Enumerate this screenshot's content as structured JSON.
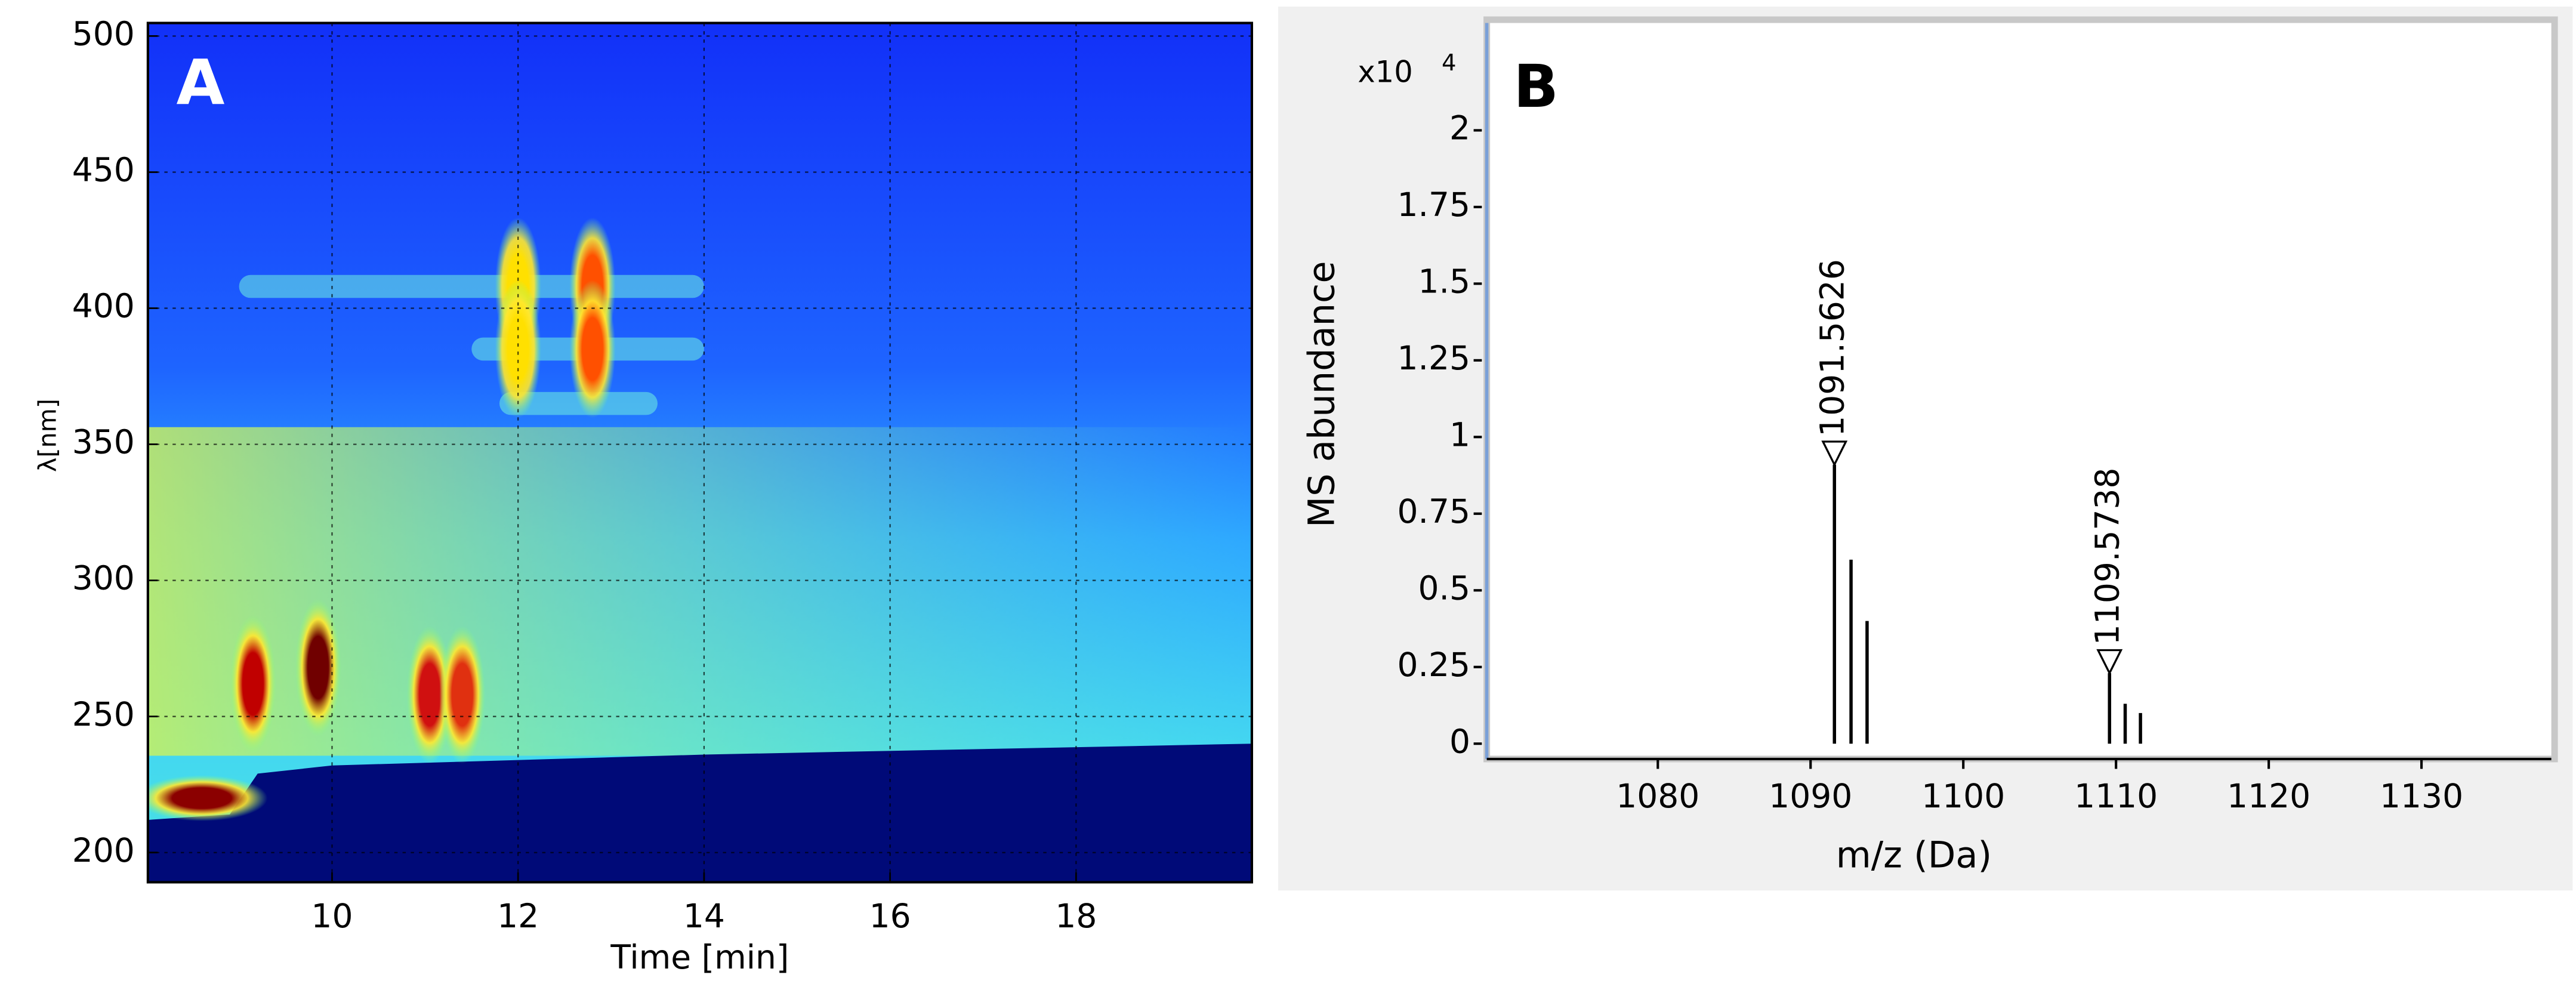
{
  "chart_data": [
    {
      "type": "heatmap",
      "panel_label": "A",
      "xlabel": "Time [min]",
      "ylabel": "λ[nm]",
      "xlim": [
        8.02,
        19.89
      ],
      "xticks": [
        10,
        12,
        14,
        16,
        18
      ],
      "ylim": [
        189.1,
        504.8
      ],
      "yticks": [
        200,
        250,
        300,
        350,
        400,
        450,
        500
      ],
      "grid": true,
      "spots": [
        {
          "x": 8.6,
          "y": 220,
          "color": "#8b0000"
        },
        {
          "x": 9.15,
          "y": 262,
          "color": "#c00000"
        },
        {
          "x": 9.85,
          "y": 268,
          "color": "#700000"
        },
        {
          "x": 11.05,
          "y": 258,
          "color": "#d01010"
        },
        {
          "x": 11.4,
          "y": 258,
          "color": "#e03010"
        },
        {
          "x": 12.0,
          "y": 408,
          "color": "#ffe000"
        },
        {
          "x": 12.0,
          "y": 385,
          "color": "#ffe000"
        },
        {
          "x": 12.8,
          "y": 408,
          "color": "#ff5000"
        },
        {
          "x": 12.8,
          "y": 385,
          "color": "#ff5000"
        }
      ],
      "bands": [
        {
          "y": 408,
          "x": [
            9.0,
            14.0
          ]
        },
        {
          "y": 385,
          "x": [
            11.5,
            14.0
          ]
        },
        {
          "y": 365,
          "x": [
            11.8,
            13.5
          ]
        }
      ],
      "dark_edge": {
        "x": [
          8.02,
          8.9,
          9.2,
          10,
          14,
          19.89
        ],
        "y": [
          212,
          214,
          229,
          232,
          236,
          240
        ]
      }
    },
    {
      "type": "stem",
      "panel_label": "B",
      "xlabel": "m/z (Da)",
      "ylabel": "MS abundance",
      "y_multiplier": "x10",
      "y_exponent": 4,
      "xlim": [
        1068.8,
        1138.5
      ],
      "xticks": [
        1080,
        1090,
        1100,
        1110,
        1120,
        1130
      ],
      "ylim": [
        -0.05,
        2.35
      ],
      "yticks": [
        0,
        0.25,
        0.5,
        0.75,
        1,
        1.25,
        1.5,
        1.75,
        2
      ],
      "color": "#000000",
      "x": [
        1091.5626,
        1092.65,
        1093.7,
        1109.5738,
        1110.6,
        1111.6
      ],
      "values": [
        0.91,
        0.6,
        0.4,
        0.23,
        0.13,
        0.1
      ],
      "annotated": [
        true,
        false,
        false,
        true,
        false,
        false
      ]
    }
  ]
}
